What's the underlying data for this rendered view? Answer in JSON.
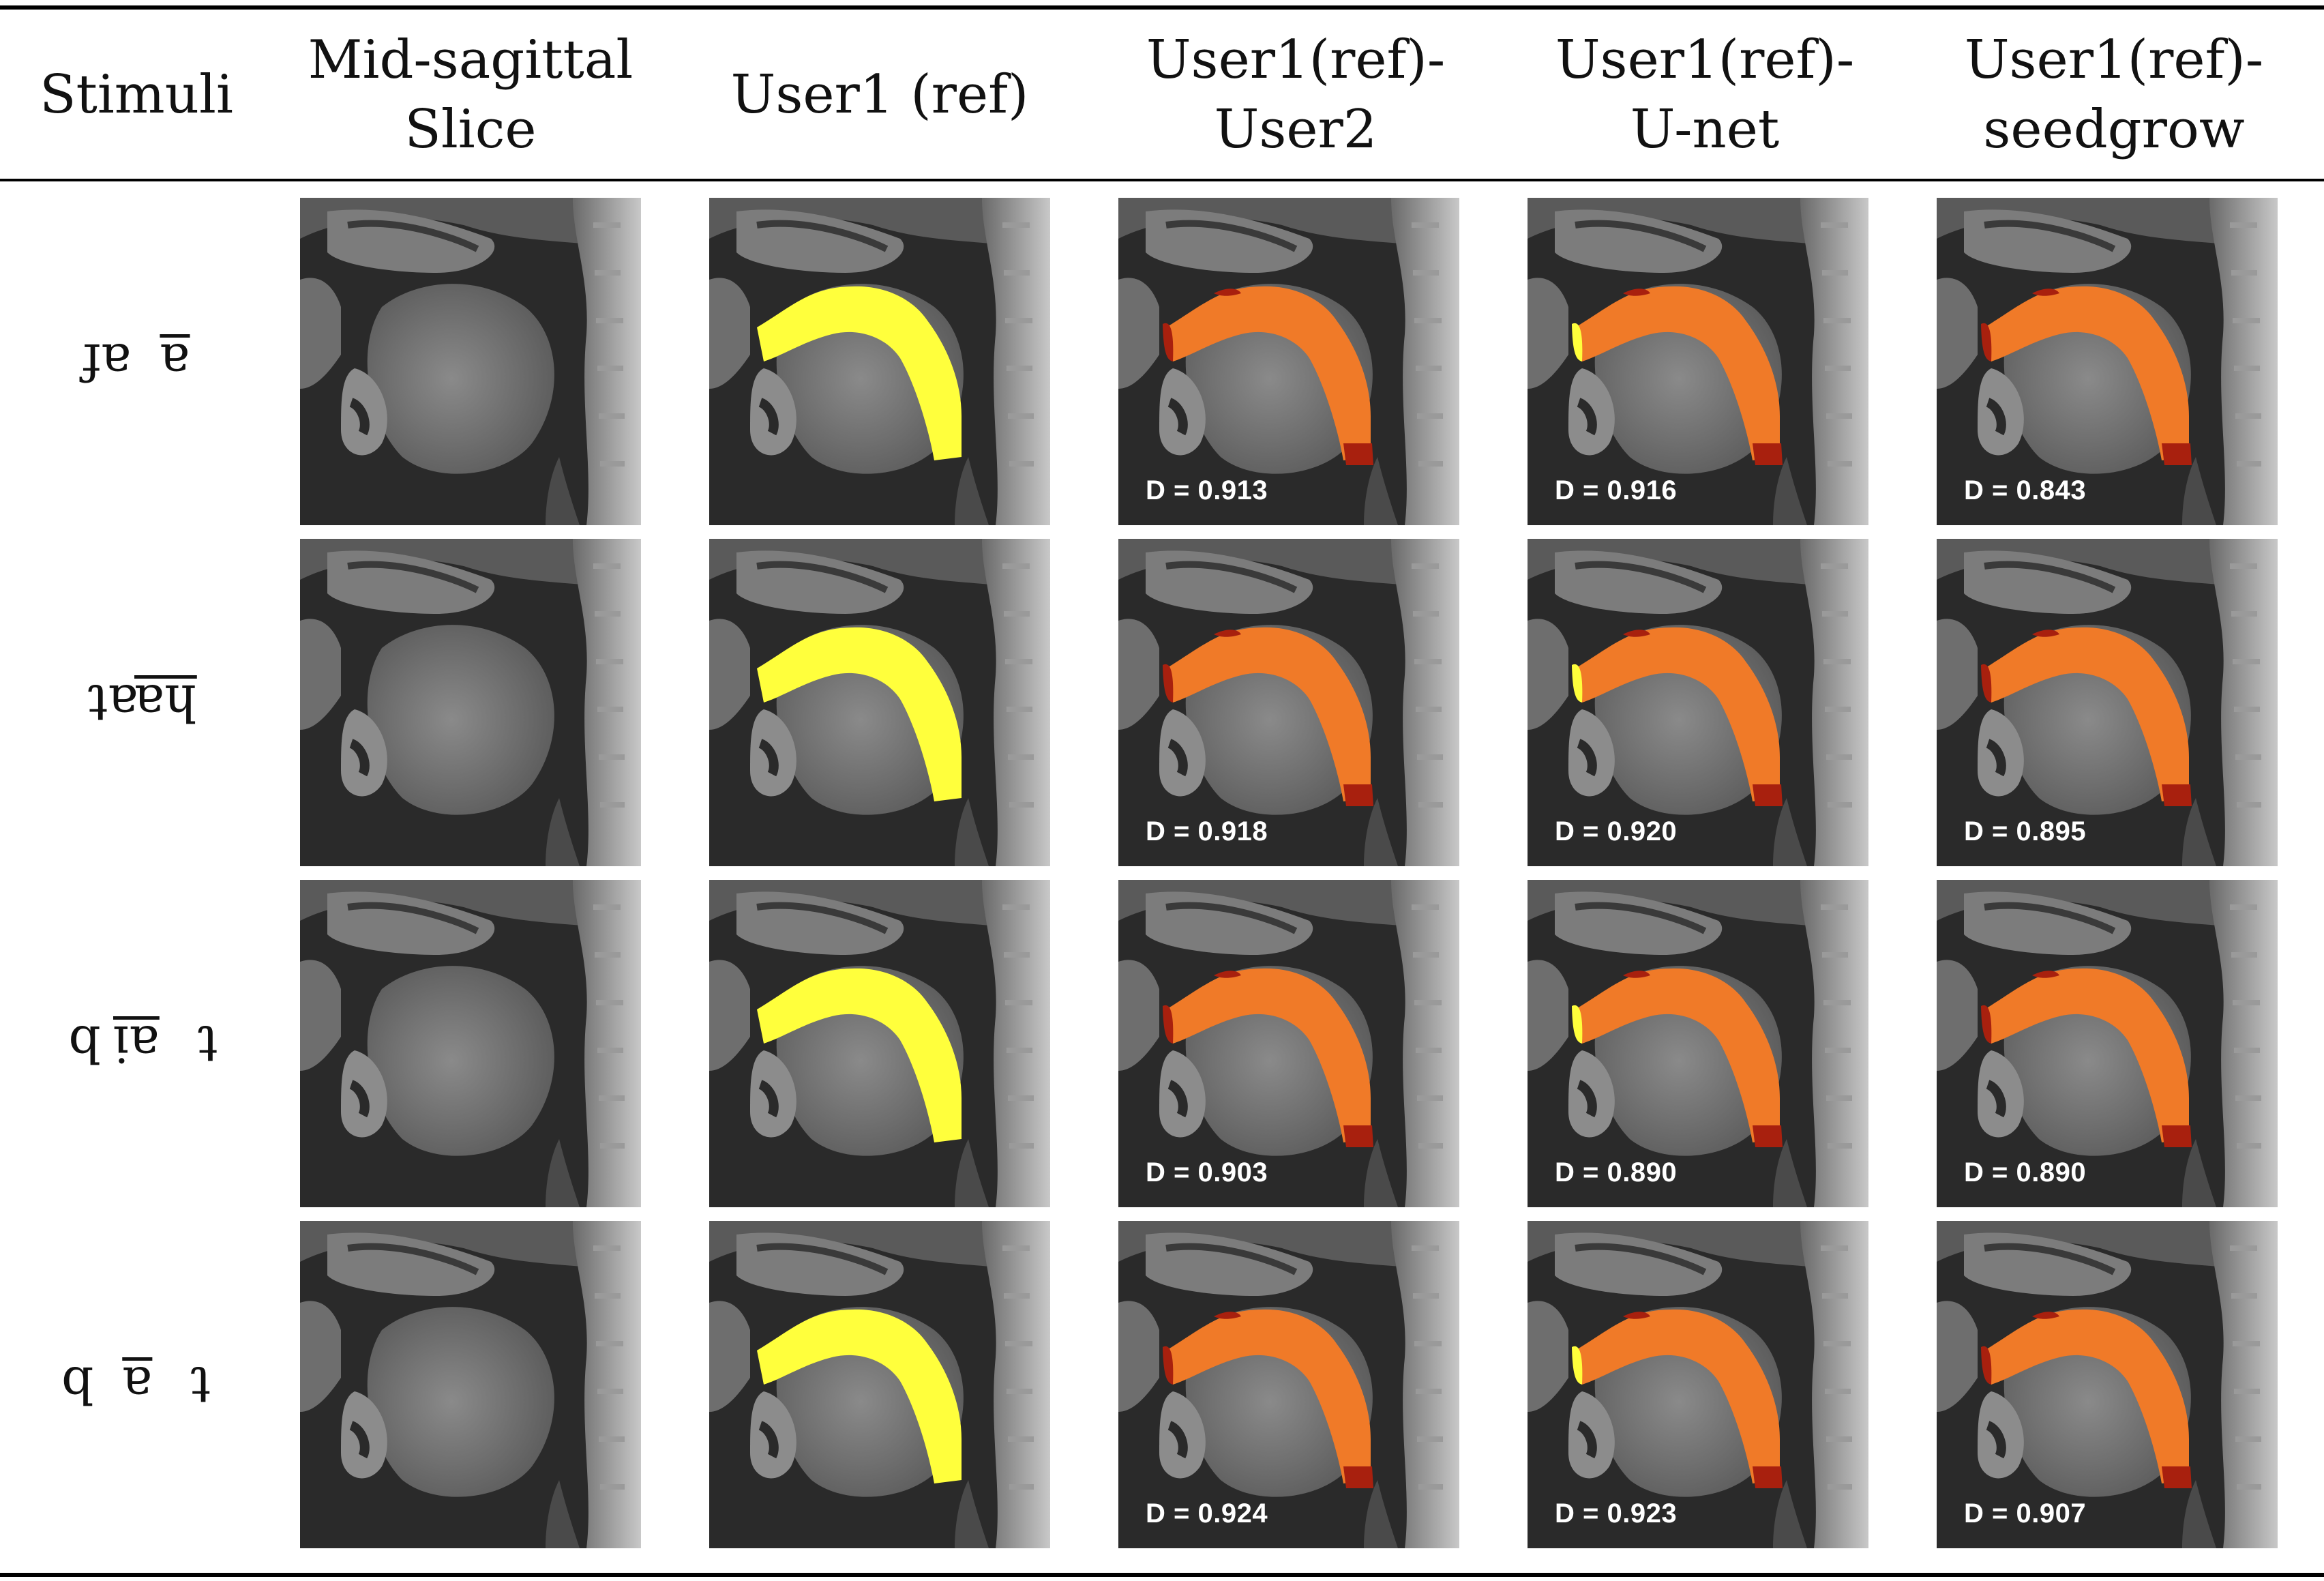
{
  "headers": {
    "stimuli": "Stimuli",
    "slice_line1": "Mid-sagittal",
    "slice_line2": "Slice",
    "user1": "User1 (ref)",
    "user2_line1": "User1(ref)-",
    "user2_line2": "User2",
    "unet_line1": "User1(ref)-",
    "unet_line2": "U-net",
    "seed_line1": "User1(ref)-",
    "seed_line2": "seedgrow"
  },
  "colors": {
    "reference": "#ffff3c",
    "overlap": "#f07a28",
    "mismatch": "#a8200e"
  },
  "rows": [
    {
      "stimulus_pre": "af",
      "stimulus_ul": "a",
      "stimulus_post": "",
      "dice": [
        "D = 0.913",
        "D = 0.916",
        "D = 0.843"
      ]
    },
    {
      "stimulus_pre": "at",
      "stimulus_ul": "ha",
      "stimulus_post": "",
      "dice": [
        "D = 0.918",
        "D = 0.920",
        "D = 0.895"
      ]
    },
    {
      "stimulus_pre": "b",
      "stimulus_ul": "ai",
      "stimulus_post": "t",
      "dice": [
        "D = 0.903",
        "D = 0.890",
        "D = 0.890"
      ]
    },
    {
      "stimulus_pre": "b",
      "stimulus_ul": "a",
      "stimulus_post": "t",
      "dice": [
        "D = 0.924",
        "D = 0.923",
        "D = 0.907"
      ]
    }
  ]
}
